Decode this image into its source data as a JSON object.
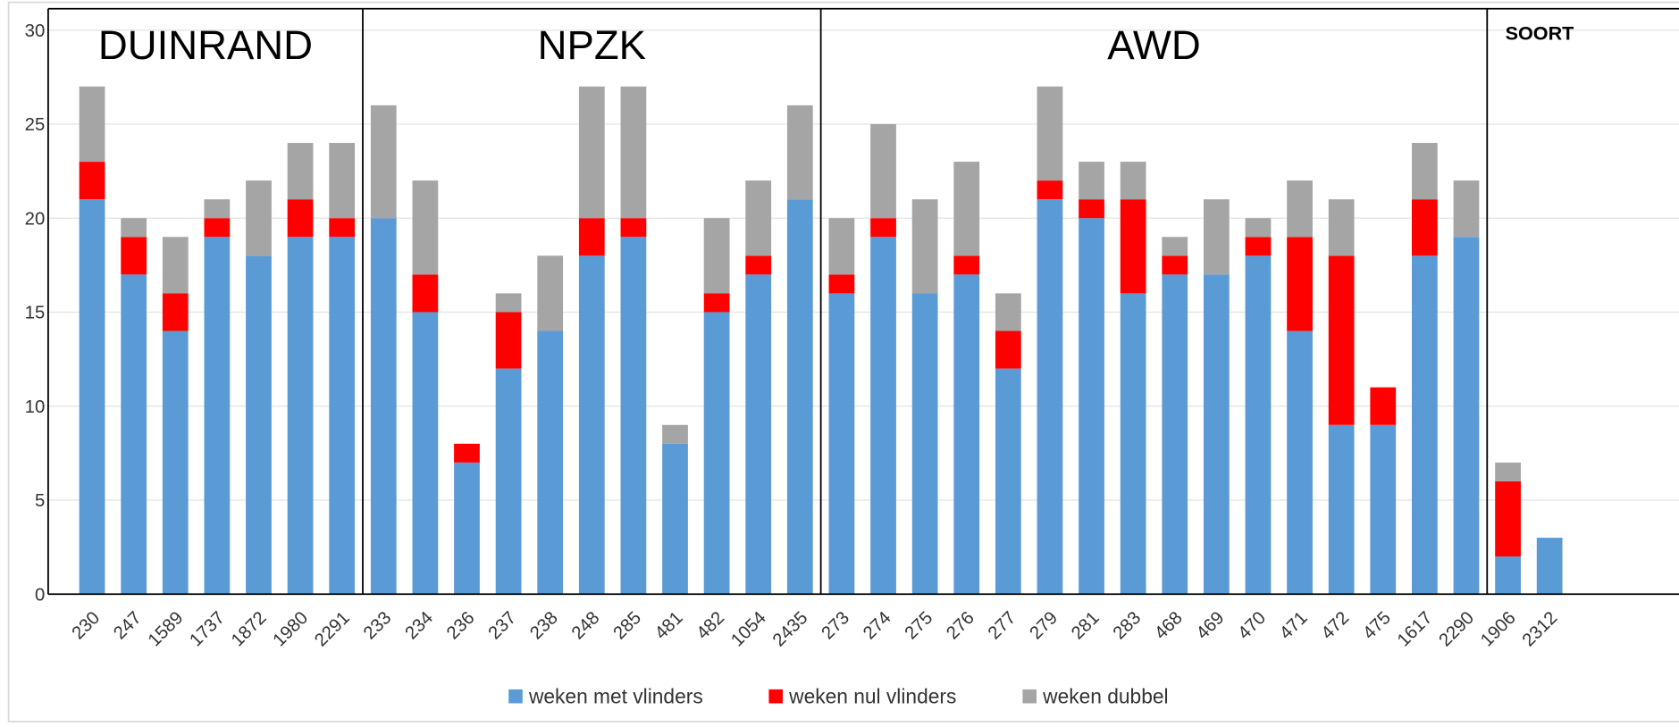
{
  "chart_data": {
    "type": "stacked-bar",
    "groups": [
      {
        "label": "DUINRAND",
        "categories": [
          "230",
          "247",
          "1589",
          "1737",
          "1872",
          "1980",
          "2291"
        ]
      },
      {
        "label": "NPZK",
        "categories": [
          "233",
          "234",
          "236",
          "237",
          "238",
          "248",
          "285",
          "481",
          "482",
          "1054",
          "2435"
        ]
      },
      {
        "label": "AWD",
        "categories": [
          "273",
          "274",
          "275",
          "276",
          "277",
          "279",
          "281",
          "283",
          "468",
          "469",
          "470",
          "471",
          "472",
          "475",
          "1617",
          "2290"
        ]
      },
      {
        "label": "SOORT",
        "categories": [
          "1906",
          "2312"
        ]
      }
    ],
    "series": [
      {
        "name": "weken met vlinders",
        "color": "#5b9bd5",
        "values": [
          21,
          17,
          14,
          19,
          18,
          19,
          19,
          20,
          15,
          7,
          12,
          14,
          18,
          19,
          8,
          15,
          17,
          21,
          16,
          19,
          16,
          17,
          12,
          21,
          20,
          16,
          17,
          17,
          18,
          14,
          9,
          9,
          18,
          19,
          2,
          3
        ]
      },
      {
        "name": "weken nul vlinders",
        "color": "#ff0000",
        "values": [
          2,
          2,
          2,
          1,
          0,
          2,
          1,
          0,
          2,
          1,
          3,
          0,
          2,
          1,
          0,
          1,
          1,
          0,
          1,
          1,
          0,
          1,
          2,
          1,
          1,
          5,
          1,
          0,
          1,
          5,
          9,
          2,
          3,
          0,
          4,
          0
        ]
      },
      {
        "name": "weken dubbel",
        "color": "#a5a5a5",
        "values": [
          4,
          1,
          3,
          1,
          4,
          3,
          4,
          6,
          5,
          0,
          1,
          4,
          7,
          7,
          1,
          4,
          4,
          5,
          3,
          5,
          5,
          5,
          2,
          5,
          2,
          2,
          1,
          4,
          1,
          3,
          3,
          0,
          3,
          3,
          1,
          0
        ]
      }
    ],
    "ylim": [
      0,
      30
    ],
    "yticks": [
      0,
      5,
      10,
      15,
      20,
      25,
      30
    ],
    "grid": true,
    "legend": "bottom"
  }
}
